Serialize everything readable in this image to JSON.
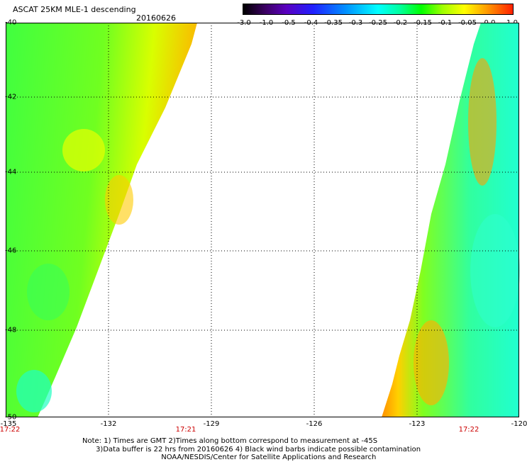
{
  "title": "ASCAT 25KM MLE-1 descending",
  "date": "20160626",
  "colorbar": {
    "labels": [
      "-3.0",
      "-1.0",
      "-0.5",
      "-0.4",
      "-0.35",
      "-0.3",
      "-0.25",
      "-0.2",
      "-0.15",
      "-0.1",
      "-0.05",
      "0.0",
      "1.0"
    ]
  },
  "axes": {
    "lat_labels": [
      "-40",
      "-42",
      "-44",
      "-46",
      "-48",
      "-50"
    ],
    "lon_labels": [
      "-135",
      "-132",
      "-129",
      "-126",
      "-123",
      "-120"
    ]
  },
  "time_labels": [
    "17:22",
    "17:21",
    "17:22"
  ],
  "notes": [
    "Note: 1) Times are GMT 2)Times along bottom correspond to measurement at -45S",
    "      3)Data buffer is 22 hrs from 20160626 4) Black wind barbs indicate possible contamination",
    "                                   NOAA/NESDIS/Center for Satellite Applications and Research"
  ]
}
